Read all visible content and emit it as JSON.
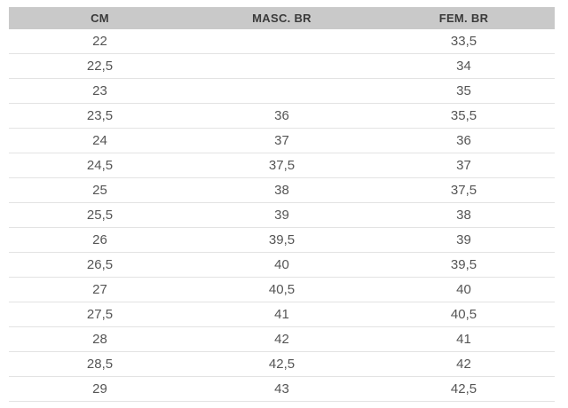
{
  "chart_data": {
    "type": "table",
    "columns": [
      "CM",
      "MASC. BR",
      "FEM. BR"
    ],
    "rows": [
      [
        "22",
        "",
        "33,5"
      ],
      [
        "22,5",
        "",
        "34"
      ],
      [
        "23",
        "",
        "35"
      ],
      [
        "23,5",
        "36",
        "35,5"
      ],
      [
        "24",
        "37",
        "36"
      ],
      [
        "24,5",
        "37,5",
        "37"
      ],
      [
        "25",
        "38",
        "37,5"
      ],
      [
        "25,5",
        "39",
        "38"
      ],
      [
        "26",
        "39,5",
        "39"
      ],
      [
        "26,5",
        "40",
        "39,5"
      ],
      [
        "27",
        "40,5",
        "40"
      ],
      [
        "27,5",
        "41",
        "40,5"
      ],
      [
        "28",
        "42",
        "41"
      ],
      [
        "28,5",
        "42,5",
        "42"
      ],
      [
        "29",
        "43",
        "42,5"
      ]
    ],
    "colors": {
      "header_bg": "#c9c9c9",
      "header_text": "#3a3a3a",
      "body_text": "#555555",
      "row_border": "#e3e3e3",
      "background": "#ffffff"
    }
  }
}
